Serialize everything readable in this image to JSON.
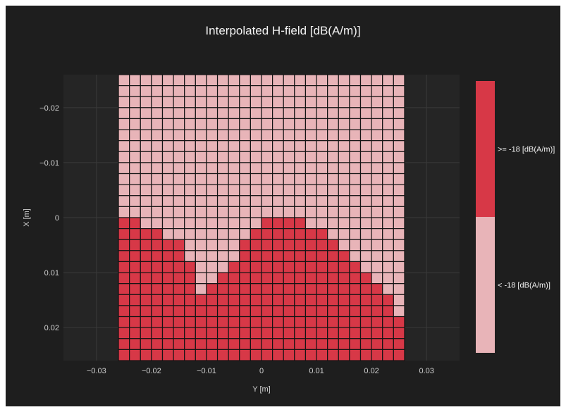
{
  "chart_data": {
    "type": "heatmap",
    "title": "Interpolated H-field [dB(A/m)]",
    "xlabel": "Y [m]",
    "ylabel": "X [m]",
    "xlim": [
      -0.036,
      0.036
    ],
    "ylim": [
      -0.026,
      0.026
    ],
    "y_axis_reversed": true,
    "x_ticks": [
      -0.03,
      -0.02,
      -0.01,
      0,
      0.01,
      0.02,
      0.03
    ],
    "x_tick_labels": [
      "−0.03",
      "−0.02",
      "−0.01",
      "0",
      "0.01",
      "0.02",
      "0.03"
    ],
    "y_ticks": [
      -0.02,
      -0.01,
      0,
      0.01,
      0.02
    ],
    "y_tick_labels": [
      "−0.02",
      "−0.01",
      "0",
      "0.01",
      "0.02"
    ],
    "grid": true,
    "grid_extent": {
      "y_min": -0.026,
      "y_max": 0.026,
      "x_min": -0.026,
      "x_max": 0.026,
      "columns": 26,
      "rows": 26
    },
    "threshold_db": -18,
    "colors": {
      "above": "#d73847",
      "below": "#e8b4b8"
    },
    "legend": {
      "placement": "right",
      "entries": [
        {
          "label": ">= -18 [dB(A/m)]",
          "color": "#d73847"
        },
        {
          "label": "< -18 [dB(A/m)]",
          "color": "#e8b4b8"
        }
      ]
    },
    "first_above_row_by_column": [
      13,
      13,
      14,
      14,
      15,
      15,
      17,
      20,
      19,
      18,
      17,
      15,
      14,
      13,
      13,
      13,
      13,
      14,
      14,
      15,
      16,
      17,
      18,
      19,
      20,
      22
    ]
  },
  "colors": {
    "background": "#1e1e1e",
    "plot_bg": "#252525",
    "grid": "#3a3a3a",
    "cell_border": "#141414"
  }
}
